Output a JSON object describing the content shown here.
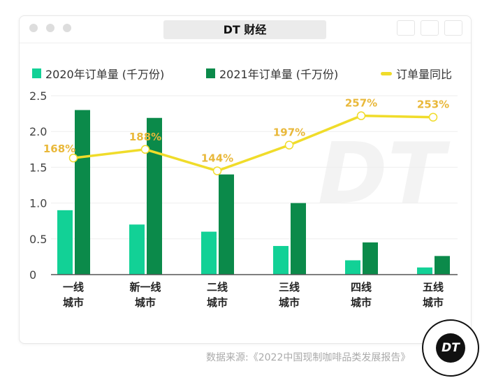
{
  "window": {
    "title": "DT 财经"
  },
  "legend": [
    "2020年订单量 (千万份)",
    "2021年订单量 (千万份)",
    "订单量同比"
  ],
  "source": "数据来源:《2022中国现制咖啡品类发展报告》",
  "logo_text": "DT",
  "colors": {
    "y2020": "#12d196",
    "y2021": "#0b8a4a",
    "yoy": "#f0dc2a",
    "yoy_label": "#e9b83a"
  },
  "chart_data": {
    "type": "bar",
    "categories": [
      "一线\n城市",
      "新一线\n城市",
      "二线\n城市",
      "三线\n城市",
      "四线\n城市",
      "五线\n城市"
    ],
    "series": [
      {
        "name": "2020年订单量 (千万份)",
        "values": [
          0.9,
          0.7,
          0.6,
          0.4,
          0.2,
          0.1
        ]
      },
      {
        "name": "2021年订单量 (千万份)",
        "values": [
          2.3,
          2.19,
          1.4,
          1.0,
          0.45,
          0.26
        ]
      },
      {
        "name": "订单量同比",
        "type": "line",
        "labels": [
          "168%",
          "188%",
          "144%",
          "197%",
          "257%",
          "253%"
        ],
        "values": [
          1.63,
          1.75,
          1.45,
          1.81,
          2.22,
          2.2
        ]
      }
    ],
    "yticks": [
      "0",
      "0.5",
      "1.0",
      "1.5",
      "2.0",
      "2.5"
    ],
    "ylim": [
      0,
      2.5
    ],
    "grid": true,
    "legend_position": "top"
  }
}
